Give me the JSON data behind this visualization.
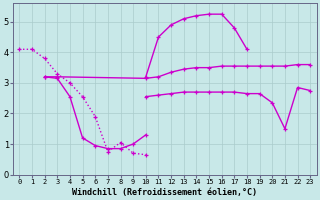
{
  "background_color": "#c8e8e8",
  "line_color": "#cc00cc",
  "grid_color": "#aacccc",
  "title": "Windchill (Refroidissement éolien,°C)",
  "xlim": [
    -0.5,
    23.5
  ],
  "ylim": [
    0,
    5.6
  ],
  "yticks": [
    0,
    1,
    2,
    3,
    4,
    5
  ],
  "xtick_labels": [
    "0",
    "1",
    "2",
    "3",
    "4",
    "5",
    "6",
    "7",
    "8",
    "9",
    "10",
    "11",
    "12",
    "13",
    "14",
    "15",
    "16",
    "17",
    "18",
    "19",
    "20",
    "21",
    "22",
    "23"
  ],
  "series": [
    {
      "x": [
        0,
        1,
        2,
        3,
        4,
        5,
        6,
        7,
        8,
        9,
        10
      ],
      "y": [
        4.1,
        4.1,
        3.8,
        3.3,
        3.0,
        2.55,
        1.9,
        0.75,
        1.05,
        0.7,
        0.65
      ],
      "linestyle": ":",
      "linewidth": 1.0
    },
    {
      "x": [
        2,
        3,
        4,
        5,
        6,
        7,
        8,
        9,
        10
      ],
      "y": [
        3.2,
        3.15,
        2.55,
        1.2,
        0.95,
        0.85,
        0.85,
        1.0,
        1.3
      ],
      "linestyle": "-",
      "linewidth": 1.0
    },
    {
      "x": [
        2,
        3,
        10,
        11,
        12,
        13,
        14,
        15,
        16,
        17,
        18,
        19,
        20,
        21,
        22,
        23
      ],
      "y": [
        3.2,
        3.2,
        3.15,
        3.2,
        3.35,
        3.45,
        3.5,
        3.5,
        3.55,
        3.55,
        3.55,
        3.55,
        3.55,
        3.55,
        3.6,
        3.6
      ],
      "linestyle": "-",
      "linewidth": 1.0
    },
    {
      "x": [
        10,
        11,
        12,
        13,
        14,
        15,
        16,
        17,
        18
      ],
      "y": [
        3.2,
        4.5,
        4.9,
        5.1,
        5.2,
        5.25,
        5.25,
        4.8,
        4.1
      ],
      "linestyle": "-",
      "linewidth": 1.0
    },
    {
      "x": [
        10,
        11,
        12,
        13,
        14,
        15,
        16,
        17,
        18,
        19,
        20,
        21,
        22,
        23
      ],
      "y": [
        2.55,
        2.6,
        2.65,
        2.7,
        2.7,
        2.7,
        2.7,
        2.7,
        2.65,
        2.65,
        2.35,
        1.5,
        2.85,
        2.75
      ],
      "linestyle": "-",
      "linewidth": 1.0
    }
  ]
}
